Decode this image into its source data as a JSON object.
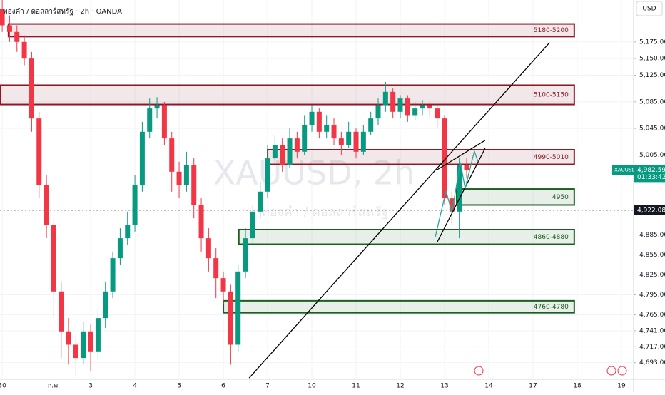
{
  "chart_data": {
    "type": "candlestick",
    "title": "ทองคำ / ดอลลาร์สหรัฐ · 2h · OANDA",
    "currency": "USD",
    "watermark": "XAUUSD, 2h",
    "watermark_subtitle": "ทองคำ / ดอลลาร์สหรัฐ",
    "symbol": "XAUUSD",
    "up_color": "#089981",
    "down_color": "#f23645",
    "x": [
      0,
      2,
      4,
      6,
      8,
      10,
      12,
      14,
      16,
      18,
      20,
      22,
      24,
      26,
      28,
      30,
      32,
      34,
      36,
      38,
      40,
      42,
      44,
      46,
      48,
      50,
      52,
      54,
      56,
      58,
      60,
      62,
      64,
      66,
      68,
      70,
      72,
      74,
      76,
      78,
      80,
      82,
      84,
      86,
      88,
      90,
      92,
      94,
      96,
      98,
      100,
      102,
      104,
      106,
      108,
      110,
      112,
      114,
      116,
      118,
      120,
      122,
      124,
      126
    ],
    "open": [
      5225,
      5200,
      5190,
      5175,
      5150,
      5060,
      4960,
      4900,
      4800,
      4740,
      4720,
      4700,
      4740,
      4710,
      4760,
      4800,
      4850,
      4880,
      4900,
      4960,
      5040,
      5075,
      5080,
      5030,
      4980,
      4960,
      4990,
      4930,
      4880,
      4850,
      4820,
      4800,
      4720,
      4830,
      4880,
      4920,
      4950,
      5000,
      5020,
      4990,
      5030,
      5010,
      5050,
      5070,
      5040,
      5050,
      5030,
      5020,
      5040,
      5010,
      5040,
      5060,
      5080,
      5100,
      5070,
      5090,
      5065,
      5075,
      5080,
      5075,
      5060,
      4940,
      4920,
      4990
    ],
    "high": [
      5240,
      5215,
      5200,
      5185,
      5160,
      5070,
      4975,
      4910,
      4815,
      4760,
      4735,
      4755,
      4750,
      4775,
      4815,
      4860,
      4895,
      4920,
      4975,
      5055,
      5090,
      5092,
      5085,
      5040,
      4995,
      5010,
      5000,
      4940,
      4895,
      4865,
      4830,
      4810,
      4840,
      4895,
      4930,
      4965,
      5020,
      5035,
      5030,
      5045,
      5040,
      5065,
      5080,
      5075,
      5065,
      5060,
      5040,
      5055,
      5045,
      5050,
      5070,
      5090,
      5115,
      5105,
      5095,
      5095,
      5085,
      5088,
      5085,
      5082,
      5065,
      4950,
      5000,
      5000
    ],
    "low": [
      5190,
      5175,
      5160,
      5140,
      5040,
      4940,
      4880,
      4760,
      4700,
      4690,
      4672,
      4690,
      4680,
      4700,
      4745,
      4790,
      4840,
      4870,
      4890,
      4950,
      5030,
      5060,
      5020,
      4950,
      4940,
      4950,
      4910,
      4860,
      4830,
      4790,
      4780,
      4690,
      4710,
      4820,
      4870,
      4910,
      4940,
      4990,
      4980,
      4985,
      5000,
      5005,
      5040,
      5030,
      5030,
      5020,
      5005,
      5015,
      5000,
      5005,
      5035,
      5050,
      5070,
      5060,
      5060,
      5055,
      5058,
      5065,
      5062,
      5045,
      4930,
      4900,
      4880,
      4970
    ],
    "close": [
      5200,
      5190,
      5175,
      5150,
      5060,
      4960,
      4900,
      4800,
      4740,
      4720,
      4700,
      4740,
      4710,
      4760,
      4800,
      4850,
      4880,
      4900,
      4960,
      5040,
      5075,
      5080,
      5030,
      4980,
      4960,
      4990,
      4930,
      4880,
      4850,
      4820,
      4800,
      4720,
      4830,
      4880,
      4920,
      4950,
      5000,
      5020,
      4990,
      5030,
      5010,
      5050,
      5070,
      5040,
      5050,
      5030,
      5020,
      5040,
      5010,
      5040,
      5060,
      5080,
      5100,
      5070,
      5090,
      5065,
      5075,
      5080,
      5075,
      5060,
      4940,
      4920,
      4990,
      4982.59
    ],
    "xlim": [
      -0.6,
      171.3
    ],
    "ylim": [
      4668,
      5238
    ],
    "xticks": [
      {
        "value": 0,
        "label": "30"
      },
      {
        "value": 14,
        "label": "ก.พ."
      },
      {
        "value": 24,
        "label": "3"
      },
      {
        "value": 36,
        "label": "4"
      },
      {
        "value": 48,
        "label": "5"
      },
      {
        "value": 60,
        "label": "6"
      },
      {
        "value": 72,
        "label": "7"
      },
      {
        "value": 84,
        "label": "10"
      },
      {
        "value": 96,
        "label": "11"
      },
      {
        "value": 108,
        "label": "12"
      },
      {
        "value": 120,
        "label": "13"
      },
      {
        "value": 132,
        "label": "14"
      },
      {
        "value": 144,
        "label": "17"
      },
      {
        "value": 156,
        "label": "18"
      },
      {
        "value": 168,
        "label": "19"
      }
    ],
    "yticks": [
      {
        "value": 5175,
        "label": "5,175.000"
      },
      {
        "value": 5150,
        "label": "5,150.000"
      },
      {
        "value": 5125,
        "label": "5,125.000"
      },
      {
        "value": 5085,
        "label": "5,085.000"
      },
      {
        "value": 5045,
        "label": "5,045.000"
      },
      {
        "value": 5005,
        "label": "5,005.000"
      },
      {
        "value": 4885,
        "label": "4,885.000"
      },
      {
        "value": 4855,
        "label": "4,855.000"
      },
      {
        "value": 4825,
        "label": "4,825.000"
      },
      {
        "value": 4795,
        "label": "4,795.000"
      },
      {
        "value": 4765,
        "label": "4,765.000"
      },
      {
        "value": 4741,
        "label": "4,741.000"
      },
      {
        "value": 4717,
        "label": "4,717.000"
      },
      {
        "value": 4693,
        "label": "4,693.000"
      }
    ],
    "zones": [
      {
        "label": "5180-5200",
        "range": [
          5183,
          5202
        ],
        "x": [
          1.7,
          155.2
        ],
        "color": "#8b1a26"
      },
      {
        "label": "5100-5150",
        "range": [
          5081,
          5110
        ],
        "x": [
          -0.6,
          155.2
        ],
        "color": "#8b1a26"
      },
      {
        "label": "4990-5010",
        "range": [
          4991,
          5013
        ],
        "x": [
          72,
          155.2
        ],
        "color": "#8b1a26"
      },
      {
        "label": "4950",
        "range": [
          4930,
          4954
        ],
        "x": [
          123.3,
          155.2
        ],
        "color": "#1b5e20"
      },
      {
        "label": "4860-4880",
        "range": [
          4871,
          4893
        ],
        "x": [
          64.2,
          155.2
        ],
        "color": "#1b5e20"
      },
      {
        "label": "4760-4780",
        "range": [
          4768,
          4786
        ],
        "x": [
          60,
          155.2
        ],
        "color": "#1b5e20"
      }
    ],
    "lines": [
      {
        "x": [
          67,
          148.5
        ],
        "y": [
          4670,
          5174
        ],
        "color": "#000000"
      },
      {
        "x": [
          118,
          131
        ],
        "y": [
          4983,
          5027
        ],
        "color": "#000000"
      },
      {
        "x": [
          118,
          131
        ],
        "y": [
          4874,
          5015
        ],
        "color": "#000000"
      },
      {
        "x": [
          117.5,
          120.4,
          122,
          124.3,
          125.6,
          128.1,
          129.1
        ],
        "y": [
          4882,
          4951,
          4919,
          4994,
          4955,
          5011,
          4995
        ],
        "color": "#26a69a"
      }
    ],
    "last_price": {
      "value": 4982.59,
      "label": "4,982.590",
      "countdown": "01:33:42"
    },
    "crosshair": {
      "value": 4922.08,
      "label": "4,922.080"
    }
  }
}
